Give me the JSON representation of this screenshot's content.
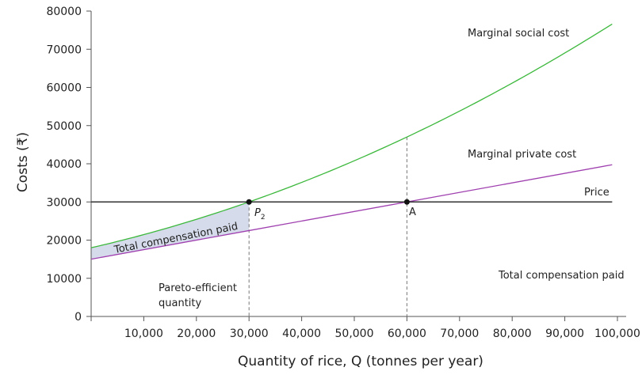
{
  "chart_data": {
    "type": "line",
    "xlabel": "Quantity of rice, Q (tonnes per year)",
    "ylabel": "Costs (₹)",
    "xlim": [
      0,
      100000
    ],
    "ylim": [
      0,
      80000
    ],
    "x_ticks": [
      "10,000",
      "20,000",
      "30,000",
      "40,000",
      "50,000",
      "60,000",
      "70,000",
      "80,000",
      "90,000",
      "100,000"
    ],
    "y_ticks": [
      "0",
      "10000",
      "20000",
      "30000",
      "40000",
      "50000",
      "60000",
      "70000",
      "80000"
    ],
    "grid": false,
    "series": [
      {
        "name": "Marginal social cost",
        "color": "#3cb83c",
        "x": [
          0,
          10000,
          20000,
          30000,
          40000,
          50000,
          60000,
          70000,
          80000,
          90000,
          99000
        ],
        "y": [
          18000,
          21400,
          25400,
          30000,
          35100,
          40800,
          47000,
          53800,
          61100,
          69000,
          77600
        ]
      },
      {
        "name": "Marginal private cost",
        "color": "#a040b0",
        "x": [
          0,
          30000,
          60000,
          99000
        ],
        "y": [
          15000,
          22500,
          30000,
          39750
        ]
      },
      {
        "name": "Price",
        "color": "#333333",
        "x": [
          0,
          99000
        ],
        "y": [
          30000,
          30000
        ]
      }
    ],
    "points": [
      {
        "label": "P",
        "subscript": "2",
        "x": 30000,
        "y": 30000
      },
      {
        "label": "A",
        "x": 60000,
        "y": 30000
      }
    ],
    "annotations": {
      "shaded_area": "Total compensation paid",
      "right_label": "Total compensation paid",
      "pareto_line1": "Pareto-efficient",
      "pareto_line2": "quantity"
    },
    "shade_color": "#d5dbea"
  }
}
